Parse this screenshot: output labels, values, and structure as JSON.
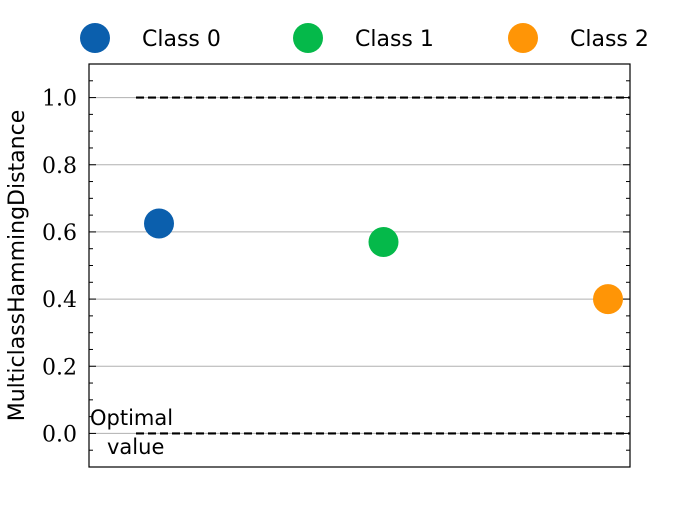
{
  "chart_data": {
    "type": "scatter",
    "title": "",
    "xlabel": "",
    "ylabel": "MulticlassHammingDistance",
    "ylim": [
      -0.1,
      1.1
    ],
    "yticks": [
      "0.0",
      "0.2",
      "0.4",
      "0.6",
      "0.8",
      "1.0"
    ],
    "grid": "horizontal",
    "legend_position": "top",
    "series": [
      {
        "name": "Class 0",
        "x": 0,
        "y": 0.625,
        "color": "#0b5fad"
      },
      {
        "name": "Class 1",
        "x": 1,
        "y": 0.57,
        "color": "#05b94a"
      },
      {
        "name": "Class 2",
        "x": 2,
        "y": 0.4,
        "color": "#ff9506"
      }
    ],
    "reference_lines": [
      {
        "y": 1.0,
        "style": "dashed"
      },
      {
        "y": 0.0,
        "style": "dashed"
      }
    ],
    "annotation": [
      "Optimal",
      "value"
    ]
  }
}
